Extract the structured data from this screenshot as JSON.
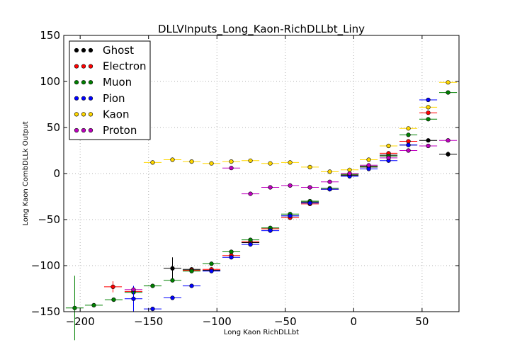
{
  "chart_data": {
    "type": "scatter",
    "title": "DLLVInputs_Long_Kaon-RichDLLbt_Liny",
    "xlabel": "Long Kaon RichDLLbt",
    "ylabel": "Long Kaon CombDLLk Output",
    "xlim": [
      -212,
      77
    ],
    "ylim": [
      -150,
      150
    ],
    "xticks": [
      -200,
      -150,
      -100,
      -50,
      0,
      50
    ],
    "yticks": [
      -150,
      -100,
      -50,
      0,
      50,
      100,
      150
    ],
    "xtick_labels": [
      "−200",
      "−150",
      "−100",
      "−50",
      "0",
      "50"
    ],
    "ytick_labels": [
      "−150",
      "−100",
      "−50",
      "0",
      "50",
      "100",
      "150"
    ],
    "grid": true,
    "legend_position": "top-left",
    "series": [
      {
        "name": "Ghost",
        "color": "#000000",
        "points": [
          {
            "x": -132.5,
            "y": -103,
            "xerr": 6.5,
            "yerr": 12
          },
          {
            "x": -118.5,
            "y": -104,
            "xerr": 6.5,
            "yerr": 2
          },
          {
            "x": -104,
            "y": -105,
            "xerr": 6.5,
            "yerr": 2
          },
          {
            "x": -75.5,
            "y": -75,
            "xerr": 6.5,
            "yerr": 2
          },
          {
            "x": -61,
            "y": -60,
            "xerr": 6.5,
            "yerr": 2
          },
          {
            "x": -46.5,
            "y": -46,
            "xerr": 6.5,
            "yerr": 2
          },
          {
            "x": -32,
            "y": -31,
            "xerr": 6.5,
            "yerr": 2
          },
          {
            "x": -17.5,
            "y": -17,
            "xerr": 6.5,
            "yerr": 2
          },
          {
            "x": -3,
            "y": -2,
            "xerr": 6.5,
            "yerr": 1
          },
          {
            "x": 11,
            "y": 7,
            "xerr": 6.5,
            "yerr": 1
          },
          {
            "x": 25.5,
            "y": 20,
            "xerr": 6.5,
            "yerr": 1
          },
          {
            "x": 40,
            "y": 31,
            "xerr": 6.5,
            "yerr": 1
          },
          {
            "x": 54.5,
            "y": 36,
            "xerr": 6.5,
            "yerr": 1
          },
          {
            "x": 69,
            "y": 21,
            "xerr": 6.5,
            "yerr": 3
          }
        ]
      },
      {
        "name": "Electron",
        "color": "#ff0000",
        "points": [
          {
            "x": -176,
            "y": -123,
            "xerr": 6.5,
            "yerr": 6
          },
          {
            "x": -161,
            "y": -128,
            "xerr": 6.5,
            "yerr": 2
          },
          {
            "x": -118.5,
            "y": -105,
            "xerr": 6.5,
            "yerr": 2
          },
          {
            "x": -104,
            "y": -104,
            "xerr": 6.5,
            "yerr": 2
          },
          {
            "x": -89.5,
            "y": -89,
            "xerr": 6.5,
            "yerr": 2
          },
          {
            "x": -75.5,
            "y": -74,
            "xerr": 6.5,
            "yerr": 2
          },
          {
            "x": -61,
            "y": -60,
            "xerr": 6.5,
            "yerr": 2
          },
          {
            "x": -46.5,
            "y": -48,
            "xerr": 6.5,
            "yerr": 2
          },
          {
            "x": -32,
            "y": -33,
            "xerr": 6.5,
            "yerr": 2
          },
          {
            "x": -17.5,
            "y": -17,
            "xerr": 6.5,
            "yerr": 2
          },
          {
            "x": -3,
            "y": -1,
            "xerr": 6.5,
            "yerr": 1
          },
          {
            "x": 11,
            "y": 8,
            "xerr": 6.5,
            "yerr": 1
          },
          {
            "x": 25.5,
            "y": 22,
            "xerr": 6.5,
            "yerr": 1
          },
          {
            "x": 40,
            "y": 35,
            "xerr": 6.5,
            "yerr": 1
          },
          {
            "x": 54.5,
            "y": 66,
            "xerr": 6.5,
            "yerr": 2
          }
        ]
      },
      {
        "name": "Muon",
        "color": "#008000",
        "points": [
          {
            "x": -204,
            "y": -146,
            "xerr": 6.5,
            "yerr": 35
          },
          {
            "x": -190,
            "y": -143,
            "xerr": 6.5,
            "yerr": 2
          },
          {
            "x": -175.5,
            "y": -137,
            "xerr": 6.5,
            "yerr": 2
          },
          {
            "x": -161,
            "y": -129,
            "xerr": 6.5,
            "yerr": 2
          },
          {
            "x": -147,
            "y": -122,
            "xerr": 6.5,
            "yerr": 2
          },
          {
            "x": -132.5,
            "y": -116,
            "xerr": 6.5,
            "yerr": 2
          },
          {
            "x": -118.5,
            "y": -106,
            "xerr": 6.5,
            "yerr": 2
          },
          {
            "x": -104,
            "y": -98,
            "xerr": 6.5,
            "yerr": 2
          },
          {
            "x": -89.5,
            "y": -85,
            "xerr": 6.5,
            "yerr": 2
          },
          {
            "x": -75.5,
            "y": -72,
            "xerr": 6.5,
            "yerr": 2
          },
          {
            "x": -61,
            "y": -59,
            "xerr": 6.5,
            "yerr": 2
          },
          {
            "x": -46.5,
            "y": -44,
            "xerr": 6.5,
            "yerr": 2
          },
          {
            "x": -32,
            "y": -30,
            "xerr": 6.5,
            "yerr": 2
          },
          {
            "x": -17.5,
            "y": -16,
            "xerr": 6.5,
            "yerr": 2
          },
          {
            "x": -3,
            "y": -1,
            "xerr": 6.5,
            "yerr": 1
          },
          {
            "x": 11,
            "y": 8,
            "xerr": 6.5,
            "yerr": 1
          },
          {
            "x": 25.5,
            "y": 19,
            "xerr": 6.5,
            "yerr": 1
          },
          {
            "x": 40,
            "y": 42,
            "xerr": 6.5,
            "yerr": 1
          },
          {
            "x": 54.5,
            "y": 59,
            "xerr": 6.5,
            "yerr": 1
          },
          {
            "x": 69,
            "y": 88,
            "xerr": 6.5,
            "yerr": 1
          }
        ]
      },
      {
        "name": "Pion",
        "color": "#0000ff",
        "points": [
          {
            "x": -161,
            "y": -136,
            "xerr": 6.5,
            "yerr": 14
          },
          {
            "x": -147,
            "y": -147,
            "xerr": 6.5,
            "yerr": 1
          },
          {
            "x": -132.5,
            "y": -135,
            "xerr": 6.5,
            "yerr": 1
          },
          {
            "x": -118.5,
            "y": -122,
            "xerr": 6.5,
            "yerr": 1
          },
          {
            "x": -104,
            "y": -106,
            "xerr": 6.5,
            "yerr": 1
          },
          {
            "x": -89.5,
            "y": -91,
            "xerr": 6.5,
            "yerr": 1
          },
          {
            "x": -75.5,
            "y": -77,
            "xerr": 6.5,
            "yerr": 1
          },
          {
            "x": -61,
            "y": -62,
            "xerr": 6.5,
            "yerr": 1
          },
          {
            "x": -46.5,
            "y": -46,
            "xerr": 6.5,
            "yerr": 1
          },
          {
            "x": -32,
            "y": -32,
            "xerr": 6.5,
            "yerr": 1
          },
          {
            "x": -17.5,
            "y": -17,
            "xerr": 6.5,
            "yerr": 1
          },
          {
            "x": -3,
            "y": -3,
            "xerr": 6.5,
            "yerr": 1
          },
          {
            "x": 11,
            "y": 5,
            "xerr": 6.5,
            "yerr": 1
          },
          {
            "x": 25.5,
            "y": 14,
            "xerr": 6.5,
            "yerr": 1
          },
          {
            "x": 40,
            "y": 31,
            "xerr": 6.5,
            "yerr": 1
          },
          {
            "x": 54.5,
            "y": 80,
            "xerr": 6.5,
            "yerr": 1
          }
        ]
      },
      {
        "name": "Kaon",
        "color": "#ffd700",
        "points": [
          {
            "x": -147,
            "y": 12,
            "xerr": 6.5,
            "yerr": 1
          },
          {
            "x": -132.5,
            "y": 15,
            "xerr": 6.5,
            "yerr": 1
          },
          {
            "x": -118.5,
            "y": 13,
            "xerr": 6.5,
            "yerr": 1
          },
          {
            "x": -104,
            "y": 11,
            "xerr": 6.5,
            "yerr": 1
          },
          {
            "x": -89.5,
            "y": 13,
            "xerr": 6.5,
            "yerr": 1
          },
          {
            "x": -75.5,
            "y": 14,
            "xerr": 6.5,
            "yerr": 1
          },
          {
            "x": -61,
            "y": 11,
            "xerr": 6.5,
            "yerr": 1
          },
          {
            "x": -46.5,
            "y": 12,
            "xerr": 6.5,
            "yerr": 1
          },
          {
            "x": -32,
            "y": 7,
            "xerr": 6.5,
            "yerr": 1
          },
          {
            "x": -17.5,
            "y": 2,
            "xerr": 6.5,
            "yerr": 1
          },
          {
            "x": -3,
            "y": 4,
            "xerr": 6.5,
            "yerr": 1
          },
          {
            "x": 11,
            "y": 15,
            "xerr": 6.5,
            "yerr": 1
          },
          {
            "x": 25.5,
            "y": 30,
            "xerr": 6.5,
            "yerr": 1
          },
          {
            "x": 40,
            "y": 49,
            "xerr": 6.5,
            "yerr": 1
          },
          {
            "x": 54.5,
            "y": 72,
            "xerr": 6.5,
            "yerr": 1
          },
          {
            "x": 69,
            "y": 99,
            "xerr": 6.5,
            "yerr": 1
          }
        ]
      },
      {
        "name": "Proton",
        "color": "#bf00bf",
        "points": [
          {
            "x": -161,
            "y": -126,
            "xerr": 6.5,
            "yerr": 2
          },
          {
            "x": -89.5,
            "y": 6,
            "xerr": 6.5,
            "yerr": 1
          },
          {
            "x": -75.5,
            "y": -22,
            "xerr": 6.5,
            "yerr": 1
          },
          {
            "x": -61,
            "y": -15,
            "xerr": 6.5,
            "yerr": 1
          },
          {
            "x": -46.5,
            "y": -13,
            "xerr": 6.5,
            "yerr": 1
          },
          {
            "x": -32,
            "y": -15,
            "xerr": 6.5,
            "yerr": 1
          },
          {
            "x": -17.5,
            "y": -9,
            "xerr": 6.5,
            "yerr": 1
          },
          {
            "x": -3,
            "y": 0,
            "xerr": 6.5,
            "yerr": 1
          },
          {
            "x": 11,
            "y": 9,
            "xerr": 6.5,
            "yerr": 1
          },
          {
            "x": 25.5,
            "y": 17,
            "xerr": 6.5,
            "yerr": 1
          },
          {
            "x": 40,
            "y": 25,
            "xerr": 6.5,
            "yerr": 1
          },
          {
            "x": 54.5,
            "y": 30,
            "xerr": 6.5,
            "yerr": 1
          },
          {
            "x": 69,
            "y": 36,
            "xerr": 6.5,
            "yerr": 1
          }
        ]
      }
    ]
  }
}
